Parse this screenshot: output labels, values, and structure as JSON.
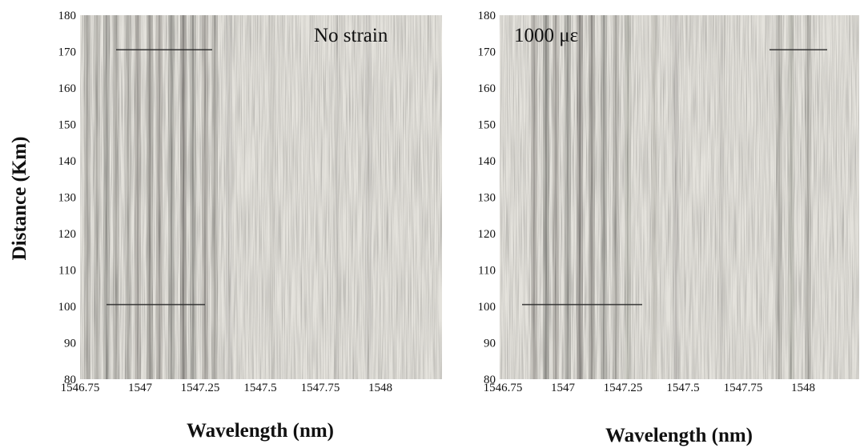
{
  "ylabel": "Distance (Km)",
  "chart_data": [
    {
      "type": "heatmap",
      "annotation": "No strain",
      "xlabel": "Wavelength (nm)",
      "xlim": [
        1546.75,
        1548.1
      ],
      "ylim": [
        80,
        180
      ],
      "x_ticks": [
        1546.75,
        1547,
        1547.25,
        1547.5,
        1547.75,
        1548
      ],
      "x_tick_labels": [
        "1546.75",
        "1547",
        "1547.25",
        "1547.5",
        "1547.75",
        "1548"
      ],
      "y_ticks": [
        80,
        90,
        100,
        110,
        120,
        130,
        140,
        150,
        160,
        170,
        180
      ],
      "y_tick_labels": [
        "80",
        "90",
        "100",
        "110",
        "120",
        "130",
        "140",
        "150",
        "160",
        "170",
        "180"
      ],
      "dark_bands": [
        {
          "x": 1546.78,
          "darkness": 0.35
        },
        {
          "x": 1546.82,
          "darkness": 0.3
        },
        {
          "x": 1546.86,
          "darkness": 0.45
        },
        {
          "x": 1546.9,
          "darkness": 0.35
        },
        {
          "x": 1546.95,
          "darkness": 0.3
        },
        {
          "x": 1546.99,
          "darkness": 0.4
        },
        {
          "x": 1547.04,
          "darkness": 0.5
        },
        {
          "x": 1547.08,
          "darkness": 0.4
        },
        {
          "x": 1547.13,
          "darkness": 0.45
        },
        {
          "x": 1547.18,
          "darkness": 0.6
        },
        {
          "x": 1547.22,
          "darkness": 0.45
        },
        {
          "x": 1547.27,
          "darkness": 0.4
        },
        {
          "x": 1547.31,
          "darkness": 0.35
        },
        {
          "x": 1547.37,
          "darkness": 0.12
        },
        {
          "x": 1547.55,
          "darkness": 0.08
        },
        {
          "x": 1547.82,
          "darkness": 0.1
        },
        {
          "x": 1547.95,
          "darkness": 0.12
        }
      ],
      "event_lines": [
        {
          "y": 170.5,
          "x_start": 1546.9,
          "x_end": 1547.3
        },
        {
          "y": 100.5,
          "x_start": 1546.86,
          "x_end": 1547.27
        }
      ]
    },
    {
      "type": "heatmap",
      "annotation": "1000 με",
      "xlabel": "Wavelength (nm)",
      "xlim": [
        1546.75,
        1548.1
      ],
      "ylim": [
        80,
        180
      ],
      "x_ticks": [
        1546.75,
        1547,
        1547.25,
        1547.5,
        1547.75,
        1548
      ],
      "x_tick_labels": [
        "1546.75",
        "1547",
        "1547.25",
        "1547.5",
        "1547.75",
        "1548"
      ],
      "y_ticks": [
        80,
        90,
        100,
        110,
        120,
        130,
        140,
        150,
        160,
        170,
        180
      ],
      "y_tick_labels": [
        "80",
        "90",
        "100",
        "110",
        "120",
        "130",
        "140",
        "150",
        "160",
        "170",
        "180"
      ],
      "dark_bands": [
        {
          "x": 1546.88,
          "darkness": 0.4
        },
        {
          "x": 1546.93,
          "darkness": 0.55
        },
        {
          "x": 1546.97,
          "darkness": 0.4
        },
        {
          "x": 1547.02,
          "darkness": 0.45
        },
        {
          "x": 1547.07,
          "darkness": 0.6
        },
        {
          "x": 1547.12,
          "darkness": 0.5
        },
        {
          "x": 1547.17,
          "darkness": 0.45
        },
        {
          "x": 1547.22,
          "darkness": 0.35
        },
        {
          "x": 1547.27,
          "darkness": 0.25
        },
        {
          "x": 1547.38,
          "darkness": 0.15
        },
        {
          "x": 1547.47,
          "darkness": 0.18
        },
        {
          "x": 1547.66,
          "darkness": 0.1
        },
        {
          "x": 1547.9,
          "darkness": 0.3
        },
        {
          "x": 1547.95,
          "darkness": 0.25
        },
        {
          "x": 1548.02,
          "darkness": 0.3
        }
      ],
      "event_lines": [
        {
          "y": 170.5,
          "x_start": 1547.86,
          "x_end": 1548.1
        },
        {
          "y": 100.5,
          "x_start": 1546.83,
          "x_end": 1547.33
        }
      ]
    }
  ]
}
